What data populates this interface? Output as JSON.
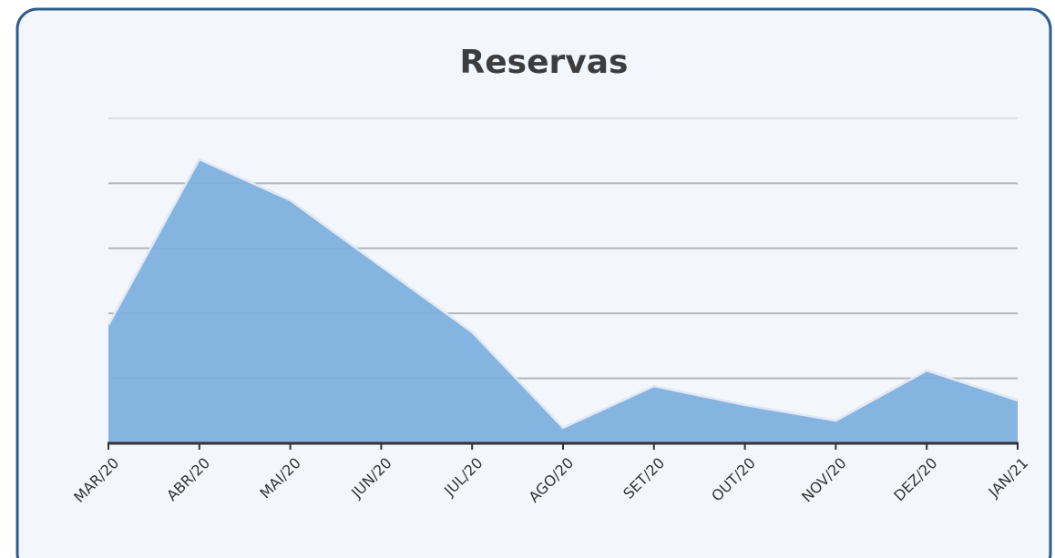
{
  "chart_data": {
    "type": "area",
    "title": "Reservas",
    "categories": [
      "MAR/20",
      "ABR/20",
      "MAI/20",
      "JUN/20",
      "JUL/20",
      "AGO/20",
      "SET/20",
      "OUT/20",
      "NOV/20",
      "DEZ/20",
      "JAN/21"
    ],
    "values": [
      1.82,
      4.37,
      3.74,
      2.72,
      1.71,
      0.24,
      0.88,
      0.59,
      0.35,
      1.12,
      0.66
    ],
    "color": "#7fb0de",
    "ylim": [
      0,
      5
    ],
    "yticks": [
      0,
      1,
      2,
      3,
      4,
      5
    ],
    "grid": true
  }
}
